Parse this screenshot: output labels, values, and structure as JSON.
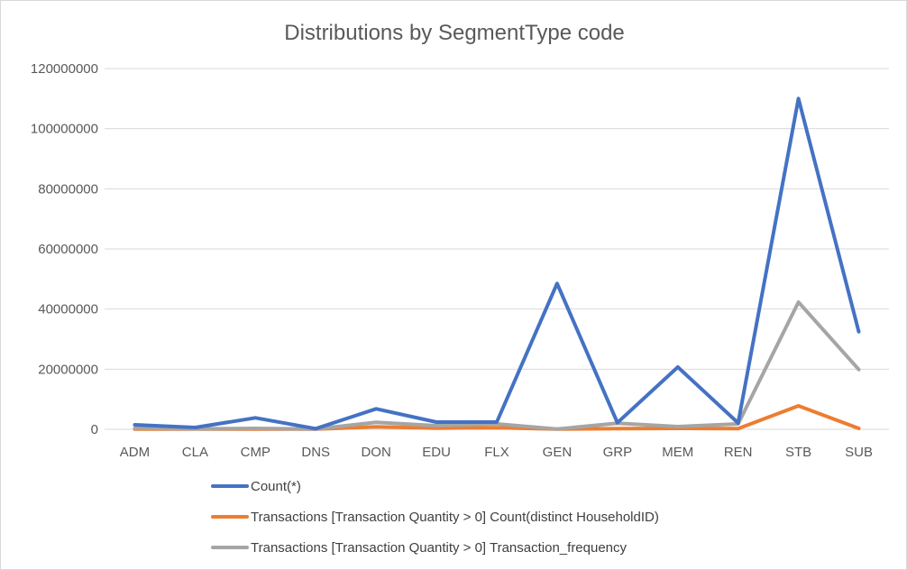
{
  "chart_data": {
    "type": "line",
    "title": "Distributions by SegmentType code",
    "xlabel": "",
    "ylabel": "",
    "categories": [
      "ADM",
      "CLA",
      "CMP",
      "DNS",
      "DON",
      "EDU",
      "FLX",
      "GEN",
      "GRP",
      "MEM",
      "REN",
      "STB",
      "SUB"
    ],
    "ylim": [
      0,
      120000000
    ],
    "yticks": [
      0,
      20000000,
      40000000,
      60000000,
      80000000,
      100000000,
      120000000
    ],
    "ytick_labels": [
      "0",
      "20000000",
      "40000000",
      "60000000",
      "80000000",
      "100000000",
      "120000000"
    ],
    "grid": "horizontal",
    "legend_position": "bottom",
    "series": [
      {
        "name": "Count(*)",
        "color": "#4472c4",
        "values": [
          1500000,
          600000,
          3800000,
          200000,
          6800000,
          2400000,
          2400000,
          48500000,
          2200000,
          20700000,
          2100000,
          110000000,
          32500000
        ]
      },
      {
        "name": "Transactions [Transaction Quantity > 0]  Count(distinct HouseholdID)",
        "color": "#ed7d31",
        "values": [
          100000,
          50000,
          100000,
          50000,
          800000,
          400000,
          500000,
          50000,
          200000,
          300000,
          200000,
          7800000,
          300000
        ]
      },
      {
        "name": "Transactions [Transaction Quantity > 0]  Transaction_frequency",
        "color": "#a5a5a5",
        "values": [
          400000,
          150000,
          300000,
          100000,
          2300000,
          1200000,
          1800000,
          100000,
          2000000,
          900000,
          1800000,
          42300000,
          19900000
        ]
      }
    ]
  }
}
